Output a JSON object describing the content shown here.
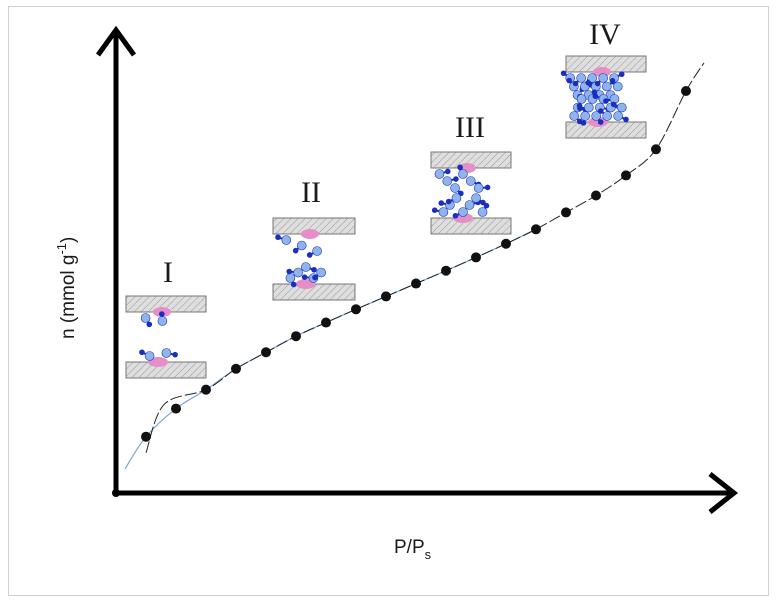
{
  "chart_data": {
    "type": "scatter",
    "xlabel_main": "P/P",
    "xlabel_sub": "s",
    "ylabel_main": "n (mmol g",
    "ylabel_sup": "-1",
    "ylabel_end": ")",
    "grid": false,
    "legend": "none",
    "xlim": [
      0,
      1
    ],
    "ylim": [
      0,
      1
    ],
    "series": [
      {
        "marker_color": "#111111",
        "x": [
          0.05,
          0.1,
          0.15,
          0.2,
          0.25,
          0.3,
          0.35,
          0.4,
          0.45,
          0.5,
          0.55,
          0.6,
          0.65,
          0.7,
          0.75,
          0.8,
          0.85,
          0.9,
          0.95
        ],
        "y": [
          0.14,
          0.21,
          0.257,
          0.309,
          0.35,
          0.39,
          0.424,
          0.457,
          0.489,
          0.521,
          0.553,
          0.586,
          0.62,
          0.656,
          0.698,
          0.74,
          0.79,
          0.855,
          1.0
        ]
      }
    ],
    "stages": [
      {
        "label": "I",
        "x": 0.07,
        "y": 0.52
      },
      {
        "label": "II",
        "x": 0.33,
        "y": 0.66
      },
      {
        "label": "III",
        "x": 0.6,
        "y": 0.79
      },
      {
        "label": "IV",
        "x": 0.85,
        "y": 0.96
      }
    ]
  },
  "colors": {
    "axis": "#000000",
    "points": "#111111",
    "fit_blue": "#7aa8d8",
    "fit_dash": "#222222",
    "surface_fill": "#dcdcdc",
    "molecule_dark": "#1a2fbf",
    "molecule_light": "#8fb4ec",
    "site_pink": "#e58fc6"
  }
}
